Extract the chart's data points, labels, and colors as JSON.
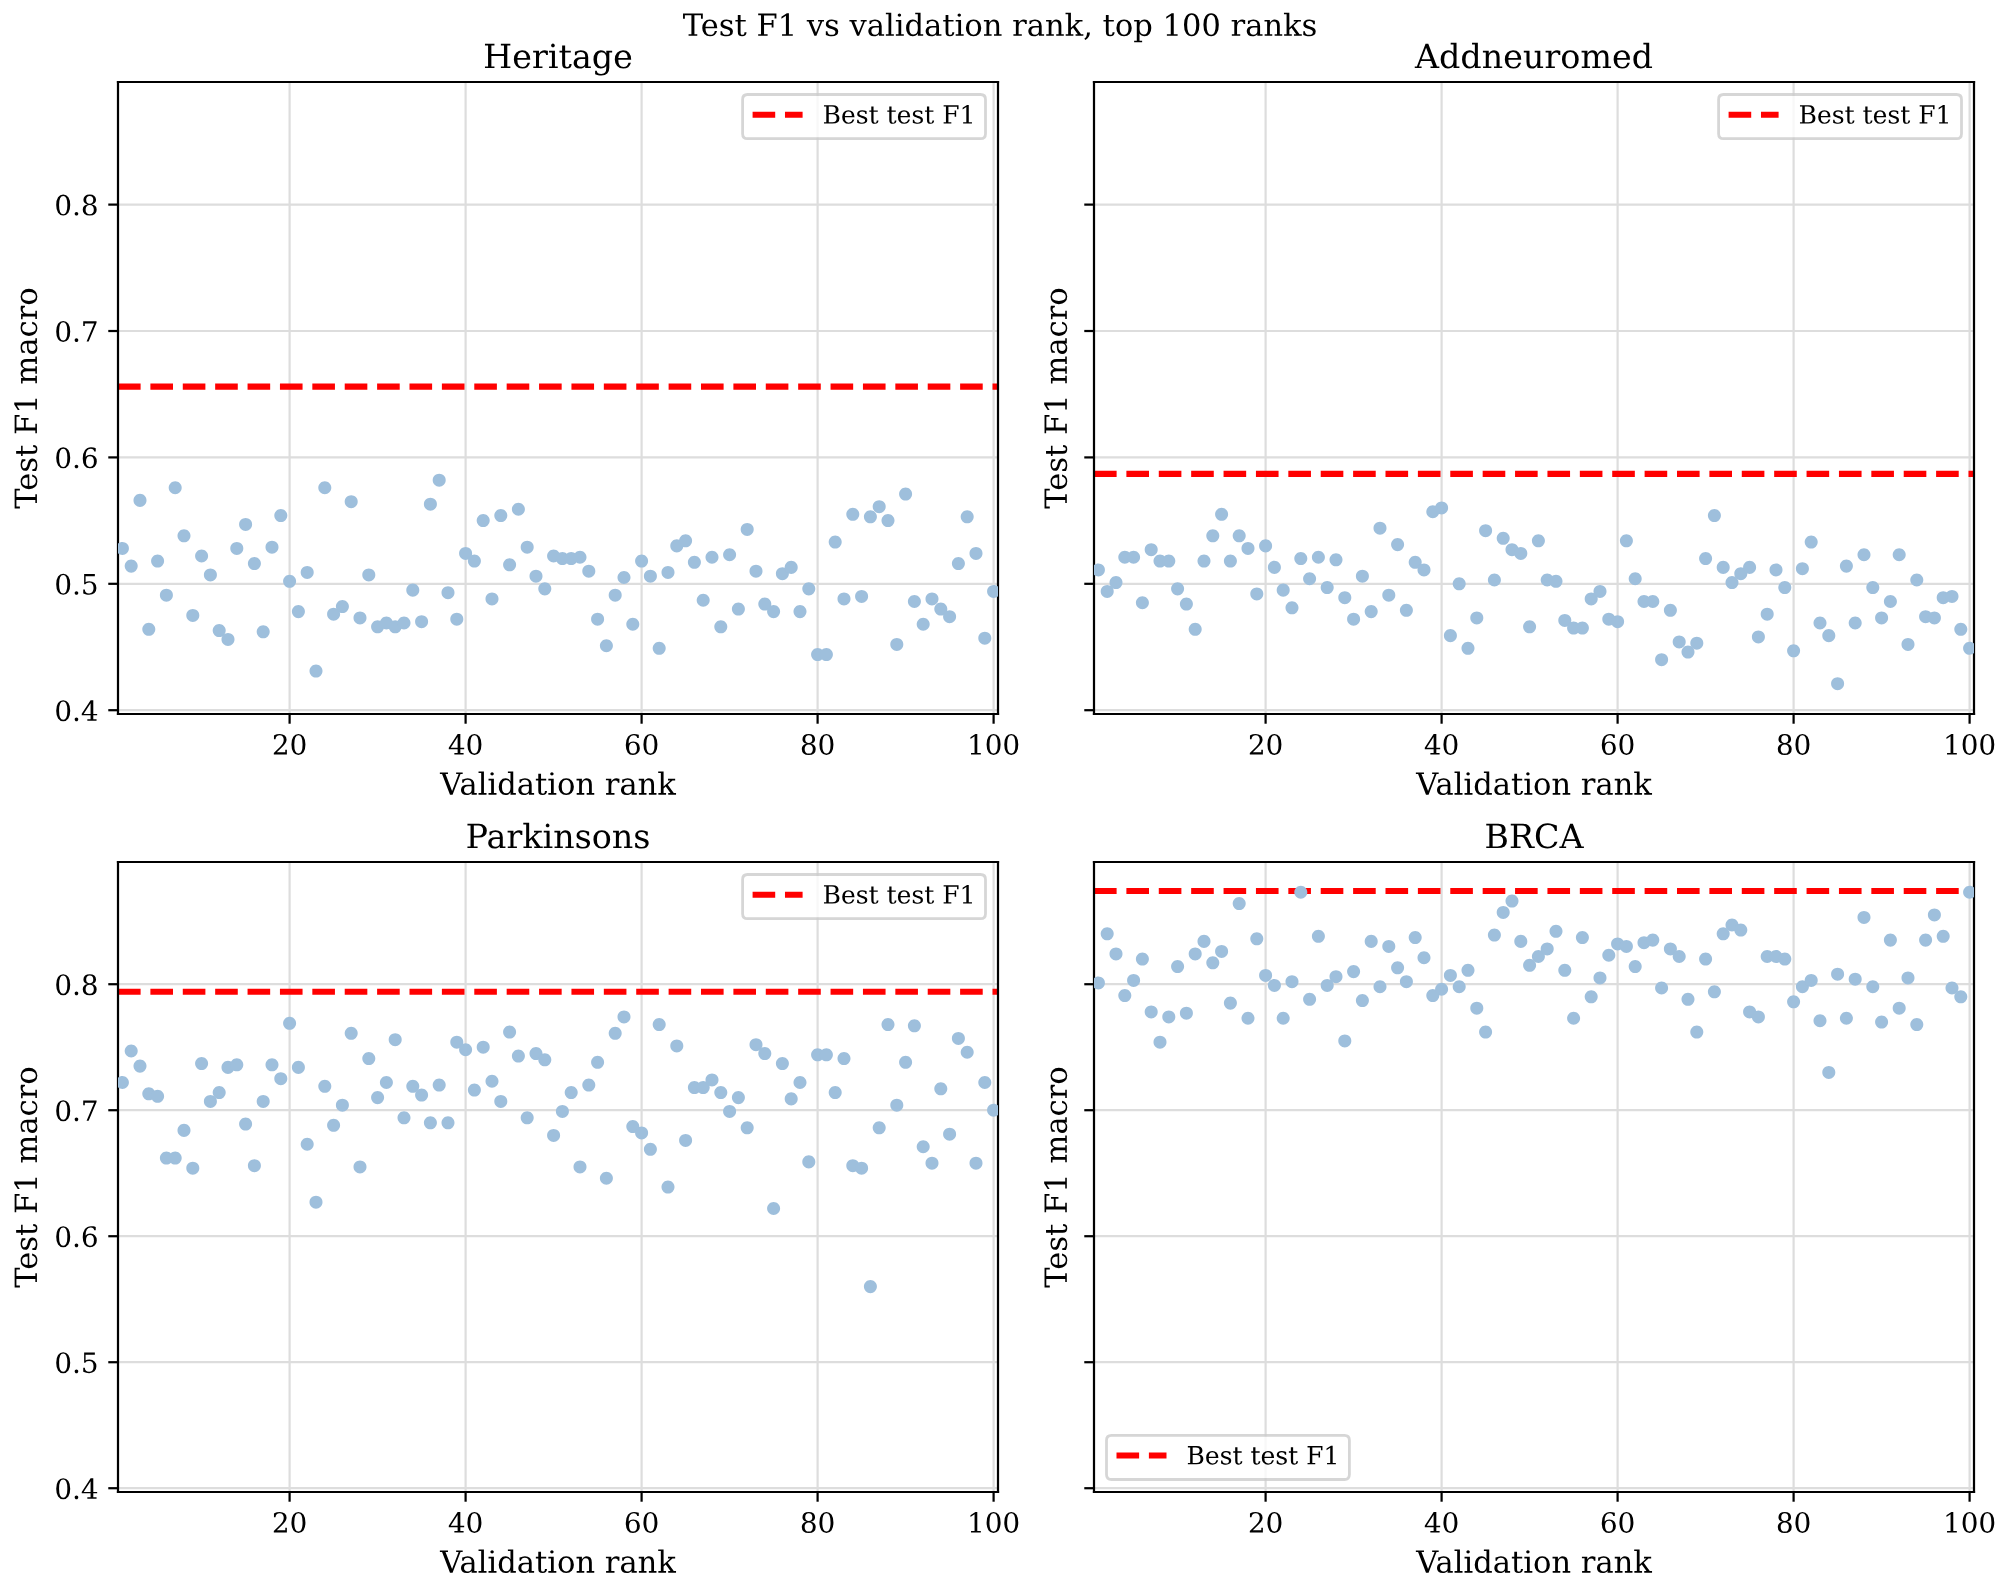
{
  "chart_data": [
    {
      "type": "scatter",
      "title": "Heritage",
      "xlabel": "Validation rank",
      "ylabel": "Test F1 macro",
      "annotations": [
        "Test F1 vs validation rank, top 100 ranks"
      ],
      "xlim": [
        0.5,
        100.5
      ],
      "ylim": [
        0.397,
        0.897
      ],
      "xticks": [
        20,
        40,
        60,
        80,
        100
      ],
      "yticks": [
        0.4,
        0.5,
        0.6,
        0.7,
        0.8
      ],
      "grid": true,
      "legend": "top right",
      "marker": "circle",
      "ref_lines": [
        {
          "axis": "y",
          "value": 0.656,
          "label": "Best test F1",
          "color": "#ff0000",
          "line_style": "dashed"
        }
      ],
      "series": [
        {
          "color": "#9ebfdc",
          "values": [
            0.528,
            0.514,
            0.566,
            0.464,
            0.518,
            0.491,
            0.576,
            0.538,
            0.475,
            0.522,
            0.507,
            0.463,
            0.456,
            0.528,
            0.547,
            0.516,
            0.462,
            0.529,
            0.554,
            0.502,
            0.478,
            0.509,
            0.431,
            0.576,
            0.476,
            0.482,
            0.565,
            0.473,
            0.507,
            0.466,
            0.469,
            0.466,
            0.469,
            0.495,
            0.47,
            0.563,
            0.582,
            0.493,
            0.472,
            0.524,
            0.518,
            0.55,
            0.488,
            0.554,
            0.515,
            0.559,
            0.529,
            0.506,
            0.496,
            0.522,
            0.52,
            0.52,
            0.521,
            0.51,
            0.472,
            0.451,
            0.491,
            0.505,
            0.468,
            0.518,
            0.506,
            0.449,
            0.509,
            0.53,
            0.534,
            0.517,
            0.487,
            0.521,
            0.466,
            0.523,
            0.48,
            0.543,
            0.51,
            0.484,
            0.478,
            0.508,
            0.513,
            0.478,
            0.496,
            0.444,
            0.444,
            0.533,
            0.488,
            0.555,
            0.49,
            0.553,
            0.561,
            0.55,
            0.452,
            0.571,
            0.486,
            0.468,
            0.488,
            0.48,
            0.474,
            0.516,
            0.553,
            0.524,
            0.457,
            0.494
          ]
        }
      ],
      "x": [
        1,
        2,
        3,
        4,
        5,
        6,
        7,
        8,
        9,
        10,
        11,
        12,
        13,
        14,
        15,
        16,
        17,
        18,
        19,
        20,
        21,
        22,
        23,
        24,
        25,
        26,
        27,
        28,
        29,
        30,
        31,
        32,
        33,
        34,
        35,
        36,
        37,
        38,
        39,
        40,
        41,
        42,
        43,
        44,
        45,
        46,
        47,
        48,
        49,
        50,
        51,
        52,
        53,
        54,
        55,
        56,
        57,
        58,
        59,
        60,
        61,
        62,
        63,
        64,
        65,
        66,
        67,
        68,
        69,
        70,
        71,
        72,
        73,
        74,
        75,
        76,
        77,
        78,
        79,
        80,
        81,
        82,
        83,
        84,
        85,
        86,
        87,
        88,
        89,
        90,
        91,
        92,
        93,
        94,
        95,
        96,
        97,
        98,
        99,
        100
      ]
    },
    {
      "type": "scatter",
      "title": "Addneuromed",
      "xlabel": "Validation rank",
      "ylabel": "Test F1 macro",
      "xlim": [
        0.5,
        100.5
      ],
      "ylim": [
        0.397,
        0.897
      ],
      "xticks": [
        20,
        40,
        60,
        80,
        100
      ],
      "yticks": [
        0.4,
        0.5,
        0.6,
        0.7,
        0.8
      ],
      "tick_labels": "x",
      "grid": true,
      "legend": "top right",
      "marker": "circle",
      "ref_lines": [
        {
          "axis": "y",
          "value": 0.587,
          "label": "Best test F1",
          "color": "#ff0000",
          "line_style": "dashed"
        }
      ],
      "series": [
        {
          "color": "#9ebfdc",
          "values": [
            0.511,
            0.494,
            0.501,
            0.521,
            0.521,
            0.485,
            0.527,
            0.518,
            0.518,
            0.496,
            0.484,
            0.464,
            0.518,
            0.538,
            0.555,
            0.518,
            0.538,
            0.528,
            0.492,
            0.53,
            0.513,
            0.495,
            0.481,
            0.52,
            0.504,
            0.521,
            0.497,
            0.519,
            0.489,
            0.472,
            0.506,
            0.478,
            0.544,
            0.491,
            0.531,
            0.479,
            0.517,
            0.511,
            0.557,
            0.56,
            0.459,
            0.5,
            0.449,
            0.473,
            0.542,
            0.503,
            0.536,
            0.527,
            0.524,
            0.466,
            0.534,
            0.503,
            0.502,
            0.471,
            0.465,
            0.465,
            0.488,
            0.494,
            0.472,
            0.47,
            0.534,
            0.504,
            0.486,
            0.486,
            0.44,
            0.479,
            0.454,
            0.446,
            0.453,
            0.52,
            0.554,
            0.513,
            0.501,
            0.508,
            0.513,
            0.458,
            0.476,
            0.511,
            0.497,
            0.447,
            0.512,
            0.533,
            0.469,
            0.459,
            0.421,
            0.514,
            0.469,
            0.523,
            0.497,
            0.473,
            0.486,
            0.523,
            0.452,
            0.503,
            0.474,
            0.473,
            0.489,
            0.49,
            0.464,
            0.449
          ]
        }
      ],
      "x": [
        1,
        2,
        3,
        4,
        5,
        6,
        7,
        8,
        9,
        10,
        11,
        12,
        13,
        14,
        15,
        16,
        17,
        18,
        19,
        20,
        21,
        22,
        23,
        24,
        25,
        26,
        27,
        28,
        29,
        30,
        31,
        32,
        33,
        34,
        35,
        36,
        37,
        38,
        39,
        40,
        41,
        42,
        43,
        44,
        45,
        46,
        47,
        48,
        49,
        50,
        51,
        52,
        53,
        54,
        55,
        56,
        57,
        58,
        59,
        60,
        61,
        62,
        63,
        64,
        65,
        66,
        67,
        68,
        69,
        70,
        71,
        72,
        73,
        74,
        75,
        76,
        77,
        78,
        79,
        80,
        81,
        82,
        83,
        84,
        85,
        86,
        87,
        88,
        89,
        90,
        91,
        92,
        93,
        94,
        95,
        96,
        97,
        98,
        99,
        100
      ]
    },
    {
      "type": "scatter",
      "title": "Parkinsons",
      "xlabel": "Validation rank",
      "ylabel": "Test F1 macro",
      "xlim": [
        0.5,
        100.5
      ],
      "ylim": [
        0.397,
        0.897
      ],
      "xticks": [
        20,
        40,
        60,
        80,
        100
      ],
      "yticks": [
        0.4,
        0.5,
        0.6,
        0.7,
        0.8
      ],
      "grid": true,
      "legend": "top right",
      "marker": "circle",
      "ref_lines": [
        {
          "axis": "y",
          "value": 0.794,
          "label": "Best test F1",
          "color": "#ff0000",
          "line_style": "dashed"
        }
      ],
      "series": [
        {
          "color": "#9ebfdc",
          "values": [
            0.722,
            0.747,
            0.735,
            0.713,
            0.711,
            0.662,
            0.662,
            0.684,
            0.654,
            0.737,
            0.707,
            0.714,
            0.734,
            0.736,
            0.689,
            0.656,
            0.707,
            0.736,
            0.725,
            0.769,
            0.734,
            0.673,
            0.627,
            0.719,
            0.688,
            0.704,
            0.761,
            0.655,
            0.741,
            0.71,
            0.722,
            0.756,
            0.694,
            0.719,
            0.712,
            0.69,
            0.72,
            0.69,
            0.754,
            0.748,
            0.716,
            0.75,
            0.723,
            0.707,
            0.762,
            0.743,
            0.694,
            0.745,
            0.74,
            0.68,
            0.699,
            0.714,
            0.655,
            0.72,
            0.738,
            0.646,
            0.761,
            0.774,
            0.687,
            0.682,
            0.669,
            0.768,
            0.639,
            0.751,
            0.676,
            0.718,
            0.718,
            0.724,
            0.714,
            0.699,
            0.71,
            0.686,
            0.752,
            0.745,
            0.622,
            0.737,
            0.709,
            0.722,
            0.659,
            0.744,
            0.744,
            0.714,
            0.741,
            0.656,
            0.654,
            0.56,
            0.686,
            0.768,
            0.704,
            0.738,
            0.767,
            0.671,
            0.658,
            0.717,
            0.681,
            0.757,
            0.746,
            0.658,
            0.722,
            0.7
          ]
        }
      ],
      "x": [
        1,
        2,
        3,
        4,
        5,
        6,
        7,
        8,
        9,
        10,
        11,
        12,
        13,
        14,
        15,
        16,
        17,
        18,
        19,
        20,
        21,
        22,
        23,
        24,
        25,
        26,
        27,
        28,
        29,
        30,
        31,
        32,
        33,
        34,
        35,
        36,
        37,
        38,
        39,
        40,
        41,
        42,
        43,
        44,
        45,
        46,
        47,
        48,
        49,
        50,
        51,
        52,
        53,
        54,
        55,
        56,
        57,
        58,
        59,
        60,
        61,
        62,
        63,
        64,
        65,
        66,
        67,
        68,
        69,
        70,
        71,
        72,
        73,
        74,
        75,
        76,
        77,
        78,
        79,
        80,
        81,
        82,
        83,
        84,
        85,
        86,
        87,
        88,
        89,
        90,
        91,
        92,
        93,
        94,
        95,
        96,
        97,
        98,
        99,
        100
      ]
    },
    {
      "type": "scatter",
      "title": "BRCA",
      "xlabel": "Validation rank",
      "ylabel": "Test F1 macro",
      "xlim": [
        0.5,
        100.5
      ],
      "ylim": [
        0.397,
        0.897
      ],
      "xticks": [
        20,
        40,
        60,
        80,
        100
      ],
      "yticks": [
        0.4,
        0.5,
        0.6,
        0.7,
        0.8
      ],
      "tick_labels": "x",
      "grid": true,
      "legend": "bottom left",
      "marker": "circle",
      "ref_lines": [
        {
          "axis": "y",
          "value": 0.874,
          "label": "Best test F1",
          "color": "#ff0000",
          "line_style": "dashed"
        }
      ],
      "series": [
        {
          "color": "#9ebfdc",
          "values": [
            0.801,
            0.84,
            0.824,
            0.791,
            0.803,
            0.82,
            0.778,
            0.754,
            0.774,
            0.814,
            0.777,
            0.824,
            0.834,
            0.817,
            0.826,
            0.785,
            0.864,
            0.773,
            0.836,
            0.807,
            0.799,
            0.773,
            0.802,
            0.873,
            0.788,
            0.838,
            0.799,
            0.806,
            0.755,
            0.81,
            0.787,
            0.834,
            0.798,
            0.83,
            0.813,
            0.802,
            0.837,
            0.821,
            0.791,
            0.796,
            0.807,
            0.798,
            0.811,
            0.781,
            0.762,
            0.839,
            0.857,
            0.866,
            0.834,
            0.815,
            0.822,
            0.828,
            0.842,
            0.811,
            0.773,
            0.837,
            0.79,
            0.805,
            0.823,
            0.832,
            0.83,
            0.814,
            0.833,
            0.835,
            0.797,
            0.828,
            0.822,
            0.788,
            0.762,
            0.82,
            0.794,
            0.84,
            0.847,
            0.843,
            0.778,
            0.774,
            0.822,
            0.822,
            0.82,
            0.786,
            0.798,
            0.803,
            0.771,
            0.73,
            0.808,
            0.773,
            0.804,
            0.853,
            0.798,
            0.77,
            0.835,
            0.781,
            0.805,
            0.768,
            0.835,
            0.855,
            0.838,
            0.797,
            0.79,
            0.873
          ]
        }
      ],
      "x": [
        1,
        2,
        3,
        4,
        5,
        6,
        7,
        8,
        9,
        10,
        11,
        12,
        13,
        14,
        15,
        16,
        17,
        18,
        19,
        20,
        21,
        22,
        23,
        24,
        25,
        26,
        27,
        28,
        29,
        30,
        31,
        32,
        33,
        34,
        35,
        36,
        37,
        38,
        39,
        40,
        41,
        42,
        43,
        44,
        45,
        46,
        47,
        48,
        49,
        50,
        51,
        52,
        53,
        54,
        55,
        56,
        57,
        58,
        59,
        60,
        61,
        62,
        63,
        64,
        65,
        66,
        67,
        68,
        69,
        70,
        71,
        72,
        73,
        74,
        75,
        76,
        77,
        78,
        79,
        80,
        81,
        82,
        83,
        84,
        85,
        86,
        87,
        88,
        89,
        90,
        91,
        92,
        93,
        94,
        95,
        96,
        97,
        98,
        99,
        100
      ]
    }
  ]
}
